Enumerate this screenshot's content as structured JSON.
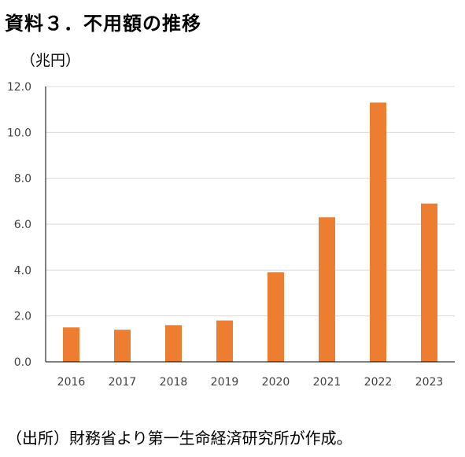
{
  "title": "資料３．不用額の推移",
  "unit_label": "（兆円）",
  "source_note": "（出所）財務省より第一生命経済研究所が作成。",
  "colors": {
    "bar": "#ED7D31",
    "grid": "#D9D9D9",
    "axis": "#000000"
  },
  "chart_data": {
    "type": "bar",
    "title": "",
    "xlabel": "",
    "ylabel": "（兆円）",
    "categories": [
      "2016",
      "2017",
      "2018",
      "2019",
      "2020",
      "2021",
      "2022",
      "2023"
    ],
    "values": [
      1.5,
      1.4,
      1.6,
      1.8,
      3.9,
      6.3,
      11.3,
      6.9
    ],
    "ylim": [
      0,
      12
    ],
    "yticks": [
      "0.0",
      "2.0",
      "4.0",
      "6.0",
      "8.0",
      "10.0",
      "12.0"
    ],
    "grid": true,
    "legend": "none"
  }
}
